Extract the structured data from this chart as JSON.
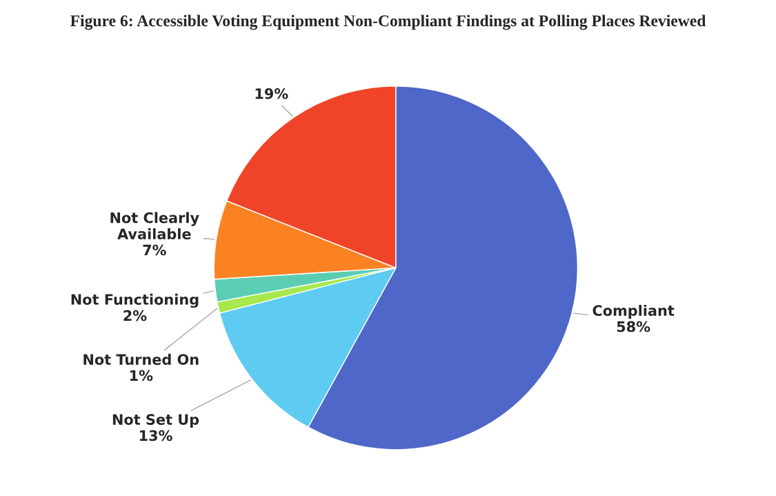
{
  "chart_data": {
    "type": "pie",
    "title": "Figure 6: Accessible Voting Equipment Non-Compliant Findings at Polling Places Reviewed",
    "categories": [
      "Compliant",
      "Not Set Up",
      "Not Turned On",
      "Not Functioning",
      "Not Clearly Available",
      null
    ],
    "values": [
      58,
      13,
      1,
      2,
      7,
      19
    ],
    "value_labels": [
      "58%",
      "13%",
      "1%",
      "2%",
      "7%",
      "19%"
    ],
    "colors": [
      "#4f67c8",
      "#5ecbf2",
      "#a6e84e",
      "#5ccdb5",
      "#fb8223",
      "#f04428"
    ]
  }
}
